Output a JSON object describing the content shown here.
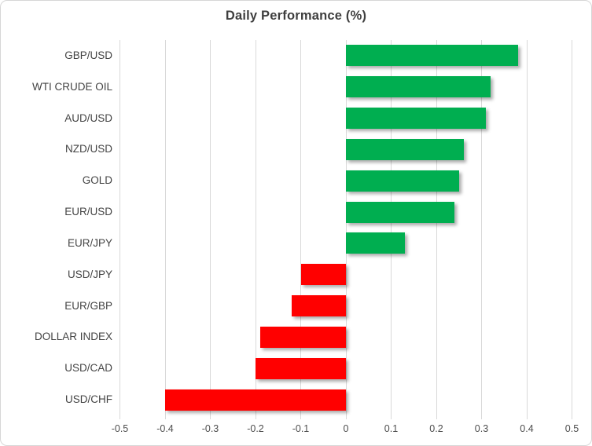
{
  "chart_data": {
    "type": "bar",
    "orientation": "horizontal",
    "title": "Daily Performance (%)",
    "categories": [
      "GBP/USD",
      "WTI CRUDE OIL",
      "AUD/USD",
      "NZD/USD",
      "GOLD",
      "EUR/USD",
      "EUR/JPY",
      "USD/JPY",
      "EUR/GBP",
      "DOLLAR INDEX",
      "USD/CAD",
      "USD/CHF"
    ],
    "values": [
      0.38,
      0.32,
      0.31,
      0.26,
      0.25,
      0.24,
      0.13,
      -0.1,
      -0.12,
      -0.19,
      -0.2,
      -0.4
    ],
    "xlim": [
      -0.5,
      0.5
    ],
    "x_ticks": [
      -0.5,
      -0.4,
      -0.3,
      -0.2,
      -0.1,
      0,
      0.1,
      0.2,
      0.3,
      0.4,
      0.5
    ],
    "x_tick_labels": [
      "-0.5",
      "-0.4",
      "-0.3",
      "-0.2",
      "-0.1",
      "0",
      "0.1",
      "0.2",
      "0.3",
      "0.4",
      "0.5"
    ],
    "grid": "vertical-only",
    "legend": "none",
    "colors": {
      "positive_bar": "#00AE50",
      "negative_bar": "#FF0000",
      "gridline": "#D9D9D9",
      "title_text": "#3F3F3F",
      "axis_text": "#4D4D4D"
    }
  }
}
